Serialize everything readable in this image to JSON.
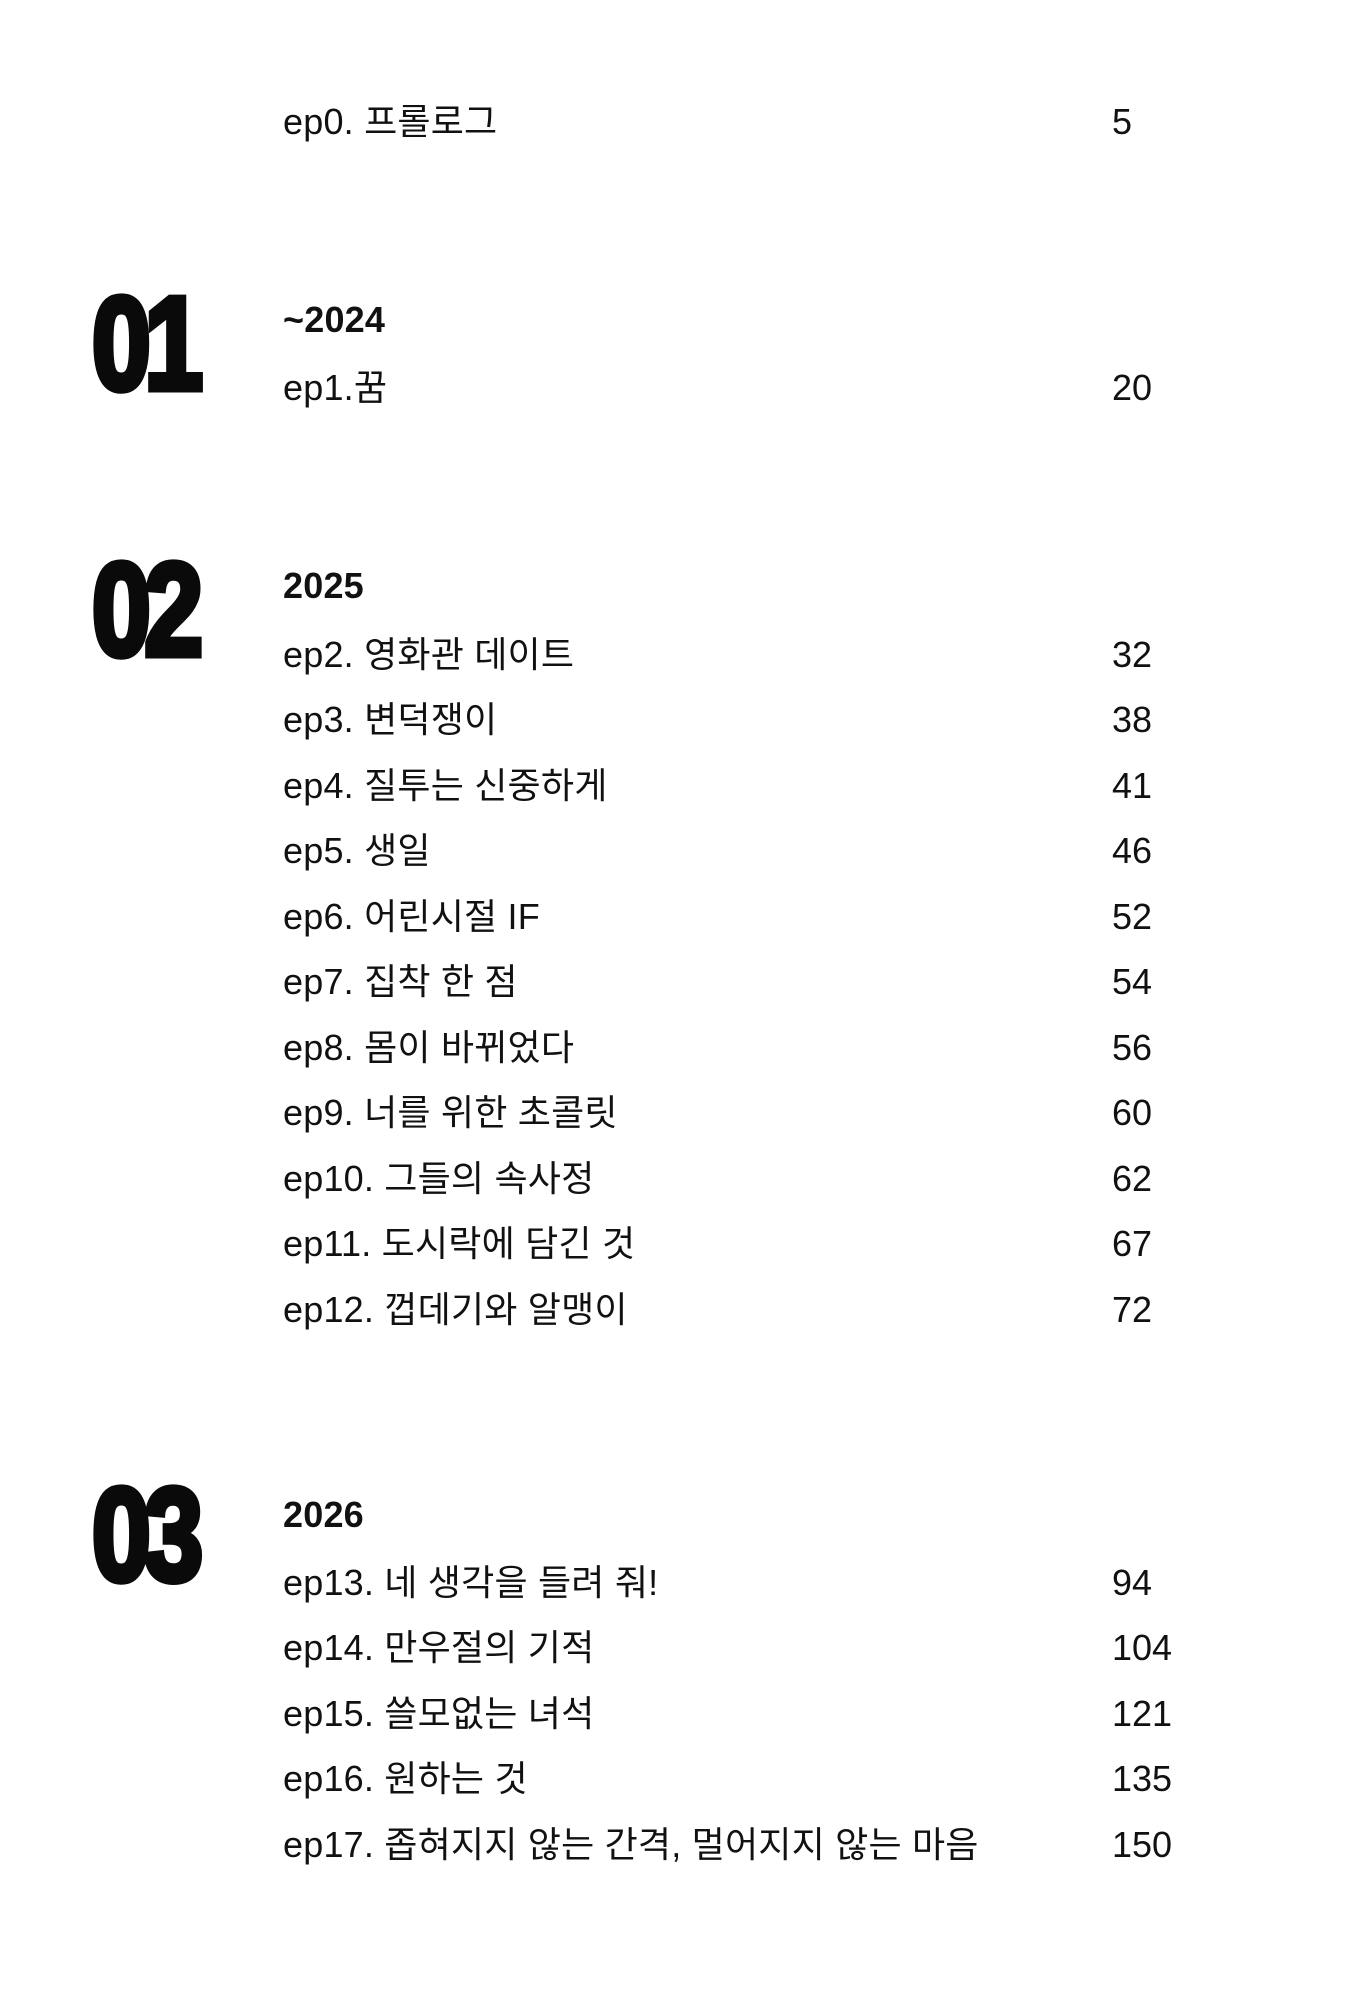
{
  "toc": {
    "prologue": {
      "title": "ep0. 프롤로그",
      "page": "5"
    },
    "sections": [
      {
        "number": "01",
        "period": "~2024",
        "episodes": [
          {
            "title": "ep1.꿈",
            "page": "20"
          }
        ]
      },
      {
        "number": "02",
        "period": "2025",
        "episodes": [
          {
            "title": "ep2. 영화관 데이트",
            "page": "32"
          },
          {
            "title": "ep3. 변덕쟁이",
            "page": "38"
          },
          {
            "title": "ep4. 질투는 신중하게",
            "page": "41"
          },
          {
            "title": "ep5. 생일",
            "page": "46"
          },
          {
            "title": "ep6. 어린시절 IF",
            "page": "52"
          },
          {
            "title": "ep7. 집착 한 점",
            "page": "54"
          },
          {
            "title": "ep8. 몸이 바뀌었다",
            "page": "56"
          },
          {
            "title": "ep9. 너를 위한 초콜릿",
            "page": "60"
          },
          {
            "title": "ep10. 그들의 속사정",
            "page": "62"
          },
          {
            "title": "ep11. 도시락에 담긴 것",
            "page": "67"
          },
          {
            "title": "ep12. 껍데기와 알맹이",
            "page": "72"
          }
        ]
      },
      {
        "number": "03",
        "period": "2026",
        "episodes": [
          {
            "title": "ep13. 네 생각을 들려 줘!",
            "page": "94"
          },
          {
            "title": "ep14. 만우절의 기적",
            "page": "104"
          },
          {
            "title": "ep15. 쓸모없는 녀석",
            "page": "121"
          },
          {
            "title": "ep16. 원하는 것",
            "page": "135"
          },
          {
            "title": "ep17. 좁혀지지 않는 간격, 멀어지지 않는 마음",
            "page": "150"
          }
        ]
      }
    ],
    "colors": {
      "text": "#111111",
      "background": "#ffffff"
    }
  }
}
